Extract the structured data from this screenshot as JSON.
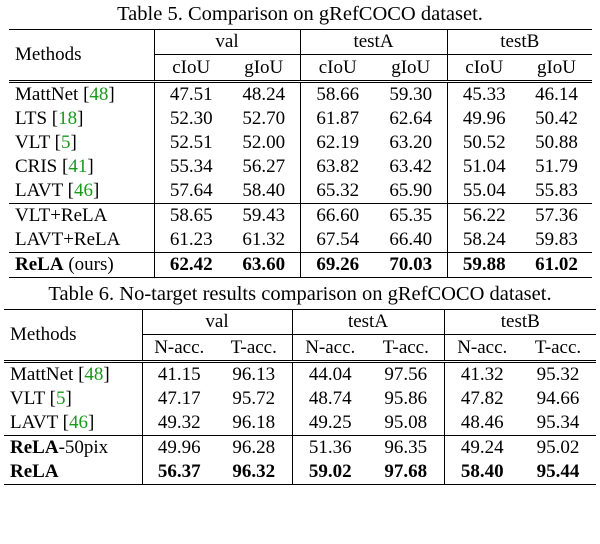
{
  "table5": {
    "caption": "Table 5. Comparison on gRefCOCO dataset.",
    "methods_header": "Methods",
    "groups": [
      "val",
      "testA",
      "testB"
    ],
    "subheaders": [
      "cIoU",
      "gIoU",
      "cIoU",
      "gIoU",
      "cIoU",
      "gIoU"
    ],
    "rows": [
      {
        "name": "MattNet",
        "cite": "48",
        "values": [
          "47.51",
          "48.24",
          "58.66",
          "59.30",
          "45.33",
          "46.14"
        ]
      },
      {
        "name": "LTS",
        "cite": "18",
        "values": [
          "52.30",
          "52.70",
          "61.87",
          "62.64",
          "49.96",
          "50.42"
        ]
      },
      {
        "name": "VLT",
        "cite": "5",
        "values": [
          "52.51",
          "52.00",
          "62.19",
          "63.20",
          "50.52",
          "50.88"
        ]
      },
      {
        "name": "CRIS",
        "cite": "41",
        "values": [
          "55.34",
          "56.27",
          "63.82",
          "63.42",
          "51.04",
          "51.79"
        ]
      },
      {
        "name": "LAVT",
        "cite": "46",
        "values": [
          "57.64",
          "58.40",
          "65.32",
          "65.90",
          "55.04",
          "55.83"
        ]
      },
      {
        "name": "VLT+ReLA",
        "values": [
          "58.65",
          "59.43",
          "66.60",
          "65.35",
          "56.22",
          "57.36"
        ]
      },
      {
        "name": "LAVT+ReLA",
        "values": [
          "61.23",
          "61.32",
          "67.54",
          "66.40",
          "58.24",
          "59.83"
        ]
      },
      {
        "name_bold": "ReLA",
        "name_suffix": " (ours)",
        "values": [
          "62.42",
          "63.60",
          "69.26",
          "70.03",
          "59.88",
          "61.02"
        ]
      }
    ]
  },
  "table6": {
    "caption": "Table 6. No-target results comparison on gRefCOCO dataset.",
    "methods_header": "Methods",
    "groups": [
      "val",
      "testA",
      "testB"
    ],
    "subheaders": [
      "N-acc.",
      "T-acc.",
      "N-acc.",
      "T-acc.",
      "N-acc.",
      "T-acc."
    ],
    "rows": [
      {
        "name": "MattNet",
        "cite": "48",
        "values": [
          "41.15",
          "96.13",
          "44.04",
          "97.56",
          "41.32",
          "95.32"
        ]
      },
      {
        "name": "VLT",
        "cite": "5",
        "values": [
          "47.17",
          "95.72",
          "48.74",
          "95.86",
          "47.82",
          "94.66"
        ]
      },
      {
        "name": "LAVT",
        "cite": "46",
        "values": [
          "49.32",
          "96.18",
          "49.25",
          "95.08",
          "48.46",
          "95.34"
        ]
      },
      {
        "name_bold": "ReLA",
        "name_suffix": "-50pix",
        "values": [
          "49.96",
          "96.28",
          "51.36",
          "96.35",
          "49.24",
          "95.02"
        ]
      },
      {
        "name_bold": "ReLA",
        "values": [
          "56.37",
          "96.32",
          "59.02",
          "97.68",
          "58.40",
          "95.44"
        ]
      }
    ]
  }
}
